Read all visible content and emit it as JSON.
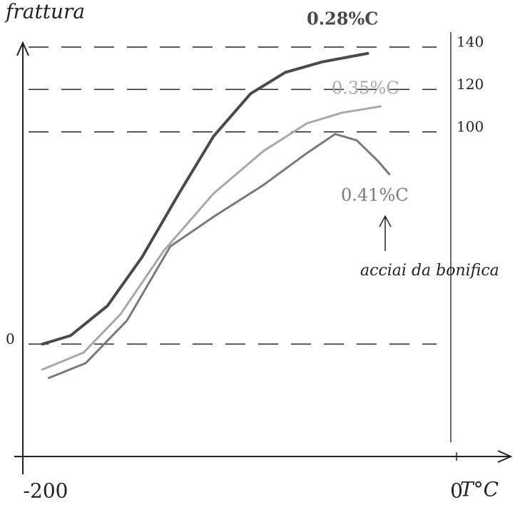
{
  "chart_data": {
    "type": "line",
    "y_label": "frattura",
    "x_label": "T°C",
    "xlim": [
      -200,
      0
    ],
    "xticks": [
      -200,
      0
    ],
    "ylim": [
      -53,
      142
    ],
    "yticks": [
      0,
      100,
      120,
      140
    ],
    "grid": true,
    "series": [
      {
        "name": "0.28%C",
        "color": "#4a4a4a",
        "x": [
          -191,
          -178,
          -161,
          -145,
          -128,
          -112,
          -95,
          -79,
          -62,
          -41
        ],
        "values": [
          0,
          4,
          18,
          41,
          71,
          98,
          118,
          128,
          133,
          137
        ]
      },
      {
        "name": "0.35%C",
        "color": "#a8a8a8",
        "x": [
          -191,
          -172,
          -155,
          -135,
          -112,
          -89,
          -69,
          -53,
          -35
        ],
        "values": [
          -12,
          -4,
          14,
          44,
          71,
          91,
          104,
          109,
          112
        ]
      },
      {
        "name": "0.41%C",
        "color": "#7a7a7a",
        "x": [
          -188,
          -171,
          -152,
          -132,
          -112,
          -89,
          -69,
          -56,
          -46,
          -36,
          -31
        ],
        "values": [
          -16,
          -9,
          11,
          46,
          60,
          75,
          90,
          99,
          96,
          86,
          80
        ]
      }
    ],
    "annotation": "acciai da bonifica"
  }
}
